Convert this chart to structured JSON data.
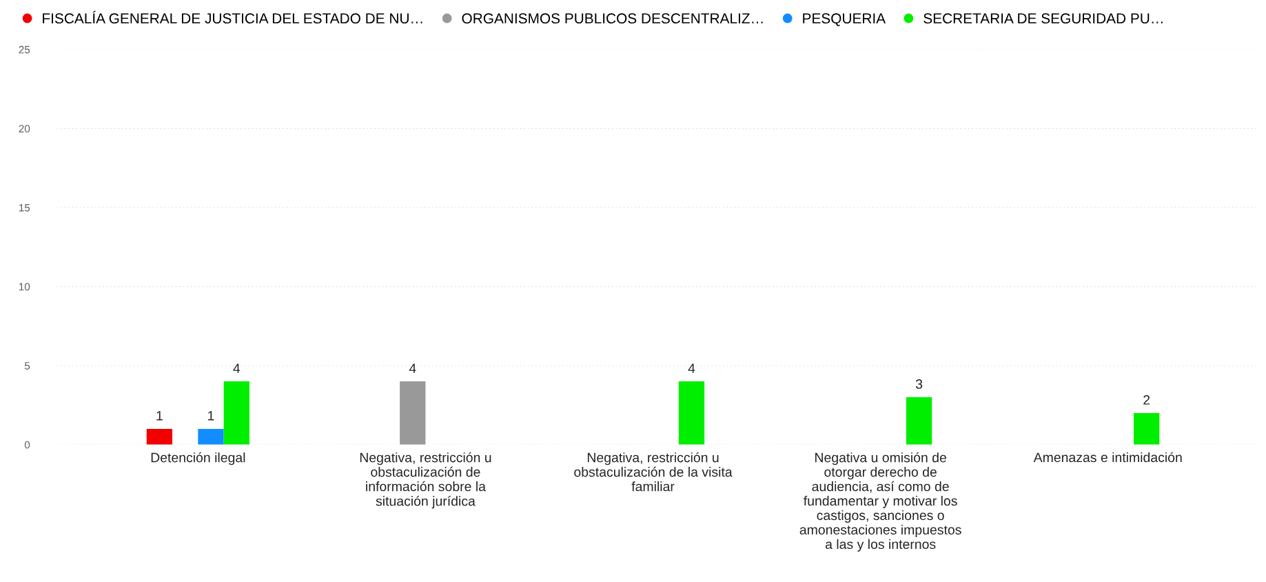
{
  "chart_data": {
    "type": "bar",
    "categories": [
      "Detención ilegal",
      "Negativa, restricción u\nobstaculización de\ninformación sobre la\nsituación jurídica",
      "Negativa, restricción u\nobstaculización de la visita\nfamiliar",
      "Negativa u omisión de\notorgar derecho de\naudiencia, así como de\nfundamentar y motivar los\ncastigos, sanciones o\namonestaciones impuestos\na las y los internos",
      "Amenazas e intimidación"
    ],
    "series": [
      {
        "name": "FISCALÍA GENERAL DE JUSTICIA DEL ESTADO DE NU…",
        "color": "#f20000",
        "values": [
          1,
          null,
          null,
          null,
          null
        ]
      },
      {
        "name": "ORGANISMOS PUBLICOS DESCENTRALIZ…",
        "color": "#999999",
        "values": [
          null,
          4,
          null,
          null,
          null
        ]
      },
      {
        "name": "PESQUERIA",
        "color": "#118dff",
        "values": [
          1,
          null,
          null,
          null,
          null
        ]
      },
      {
        "name": "SECRETARIA DE SEGURIDAD PU…",
        "color": "#00ee00",
        "values": [
          4,
          null,
          4,
          3,
          2
        ]
      }
    ],
    "ylim": [
      0,
      25
    ],
    "yticks": [
      0,
      5,
      10,
      15,
      20,
      25
    ],
    "grid": "y",
    "legend": "top left",
    "data_labels": true
  }
}
